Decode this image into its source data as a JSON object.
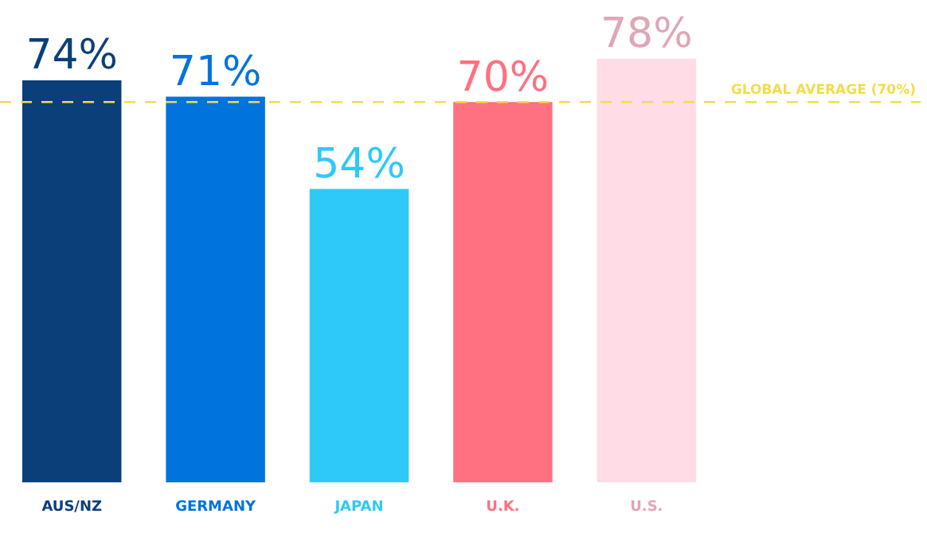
{
  "chart_data": {
    "type": "bar",
    "categories": [
      "AUS/NZ",
      "GERMANY",
      "JAPAN",
      "U.K.",
      "U.S."
    ],
    "values": [
      74,
      71,
      54,
      70,
      78
    ],
    "colors": [
      "#0b3f7a",
      "#0073dd",
      "#2ec9f7",
      "#ff7080",
      "#ffdce6"
    ],
    "value_labels": [
      "74%",
      "71%",
      "54%",
      "70%",
      "78%"
    ],
    "ref_lines": [
      {
        "axis": "y",
        "value": 70,
        "label": "GLOBAL AVERAGE (70%)",
        "color": "#f4dc4c",
        "line_style": "dashed"
      }
    ],
    "grid": false,
    "legend": false
  }
}
